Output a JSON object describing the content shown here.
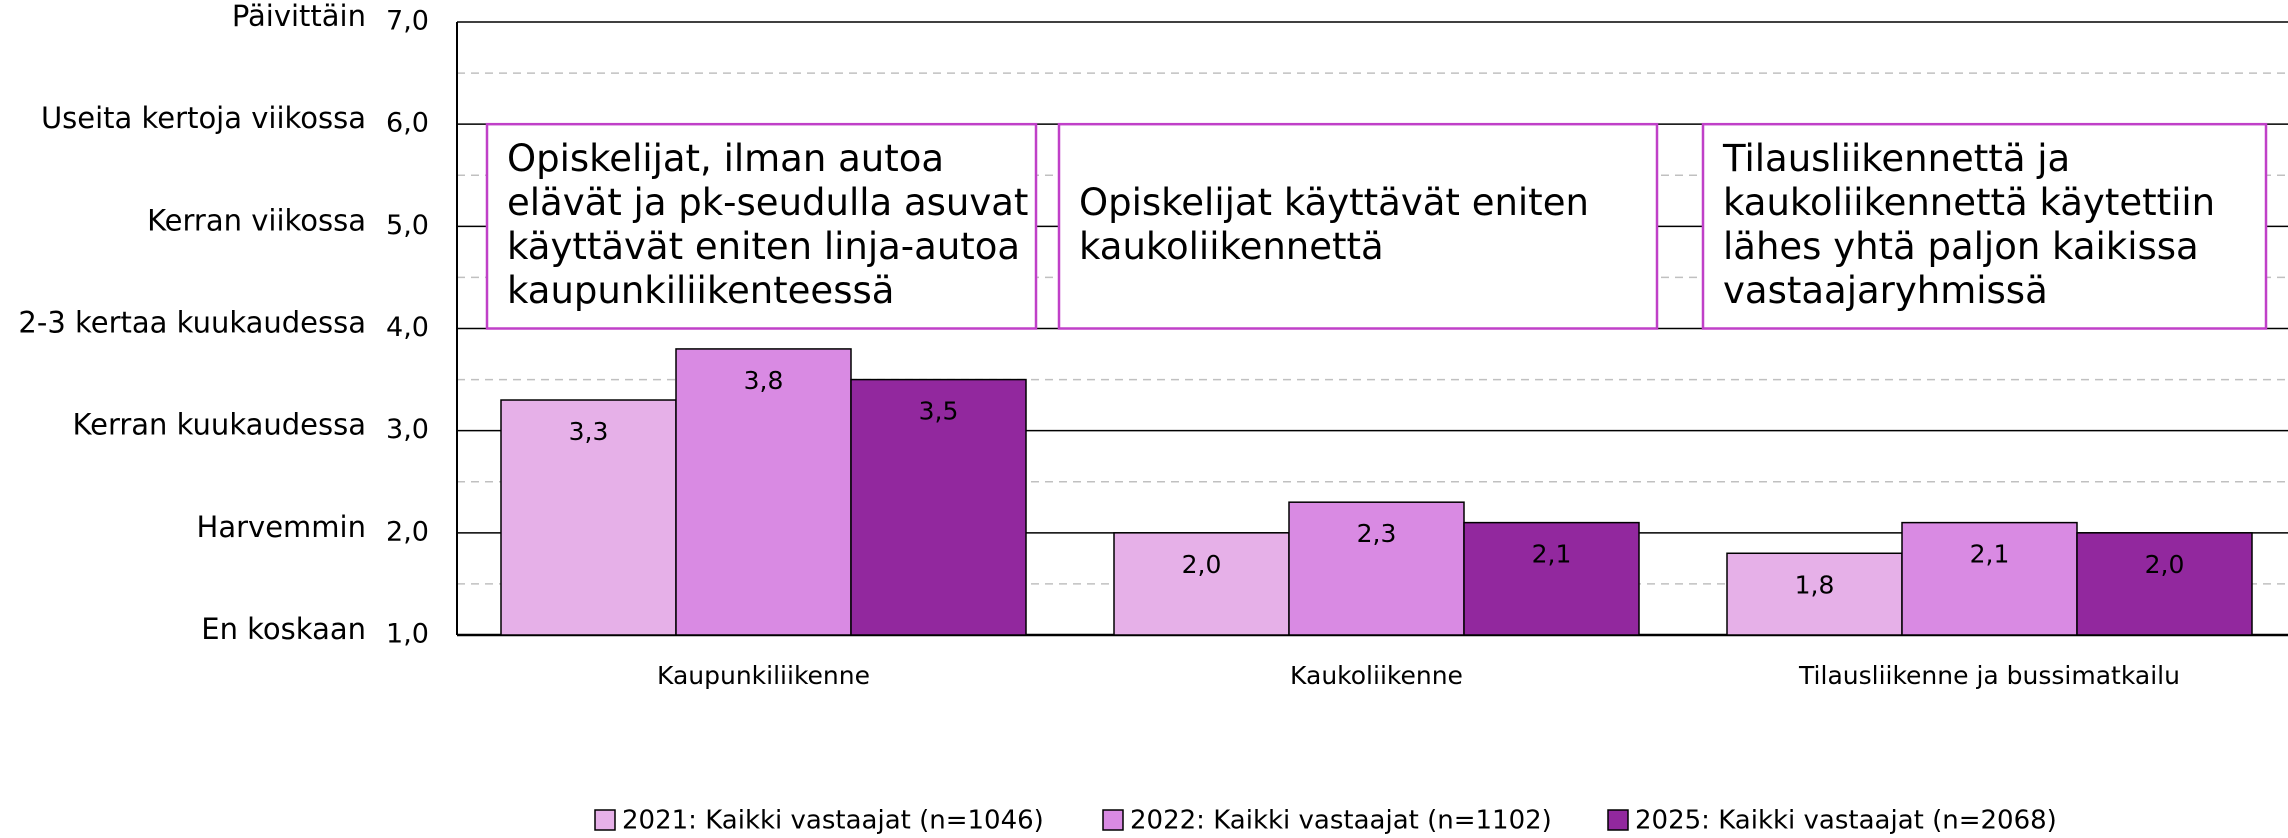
{
  "chart_data": {
    "type": "bar",
    "categories": [
      "Kaupunkiliikenne",
      "Kaukoliikenne",
      "Tilausliikenne ja bussimatkailu"
    ],
    "series": [
      {
        "name": "2021: Kaikki vastaajat (n=1046)",
        "color": "#e6b0e8",
        "values": [
          3.3,
          2.0,
          1.8
        ],
        "value_labels": [
          "3,3",
          "2,0",
          "1,8"
        ]
      },
      {
        "name": "2022: Kaikki vastaajat (n=1102)",
        "color": "#d98ae3",
        "values": [
          3.8,
          2.3,
          2.1
        ],
        "value_labels": [
          "3,8",
          "2,3",
          "2,1"
        ]
      },
      {
        "name": "2025: Kaikki vastaajat (n=2068)",
        "color": "#92289e",
        "values": [
          3.5,
          2.1,
          2.0
        ],
        "value_labels": [
          "3,5",
          "2,1",
          "2,0"
        ]
      }
    ],
    "ylim": [
      1,
      7
    ],
    "yticks": [
      {
        "value": 1,
        "label": "1,0"
      },
      {
        "value": 2,
        "label": "2,0"
      },
      {
        "value": 3,
        "label": "3,0"
      },
      {
        "value": 4,
        "label": "4,0"
      },
      {
        "value": 5,
        "label": "5,0"
      },
      {
        "value": 6,
        "label": "6,0"
      },
      {
        "value": 7,
        "label": "7,0"
      }
    ],
    "ytick_names": [
      "En koskaan",
      "Harvemmin",
      "Kerran kuukaudessa",
      "2-3 kertaa kuukaudessa",
      "Kerran viikossa",
      "Useita kertoja viikossa",
      "Päivittäin"
    ],
    "yminor_ticks": [
      1.5,
      2.5,
      3.5,
      4.5,
      5.5,
      6.5
    ],
    "grid": true,
    "legend": "bottom",
    "annotations": [
      {
        "lines": [
          "Opiskelijat, ilman autoa",
          "elävät ja pk-seudulla asuvat",
          "käyttävät eniten linja-autoa",
          "kaupunkiliikenteessä"
        ],
        "y_range": [
          4,
          6
        ],
        "color": "#c040c8"
      },
      {
        "lines": [
          "Opiskelijat käyttävät eniten",
          "kaukoliikennettä"
        ],
        "y_range": [
          4,
          6
        ],
        "color": "#c040c8"
      },
      {
        "lines": [
          "Tilausliikennettä ja",
          "kaukoliikennettä käytettiin",
          "lähes yhtä paljon kaikissa",
          "vastaajaryhmissä"
        ],
        "y_range": [
          4,
          6
        ],
        "color": "#c040c8"
      }
    ]
  }
}
